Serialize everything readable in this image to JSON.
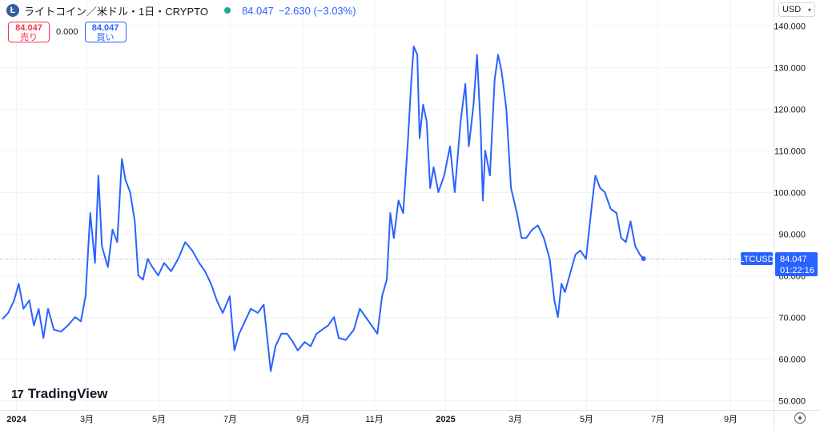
{
  "header": {
    "title": "ライトコイン／米ドル・1日・CRYPTO",
    "last": "84.047",
    "change": "−2.630 (−3.03%)"
  },
  "trade": {
    "sell_price": "84.047",
    "sell_label": "売り",
    "spread": "0.000",
    "buy_price": "84.047",
    "buy_label": "買い"
  },
  "currency": "USD",
  "logo_text": "TradingView",
  "colors": {
    "line": "#2962ff",
    "price_label": "#2962ff",
    "sell": "#f23645",
    "buy": "#2962ff"
  },
  "chart_data": {
    "type": "line",
    "symbol": "LTCUSD",
    "last_value": 84.047,
    "last_value_label": "84.047",
    "countdown": "01:22:16",
    "ylim": [
      50,
      140
    ],
    "yticks": [
      50,
      60,
      70,
      80,
      90,
      100,
      110,
      120,
      130,
      140
    ],
    "ytick_labels": [
      "50.000",
      "60.000",
      "70.000",
      "80.000",
      "90.000",
      "100.000",
      "110.000",
      "120.000",
      "130.000",
      "140.000"
    ],
    "xlim": [
      "2023-12-18",
      "2025-10-08"
    ],
    "xticks": [
      {
        "date": "2024-01-01",
        "label": "2024",
        "bold": true
      },
      {
        "date": "2024-03-01",
        "label": "3月",
        "bold": false
      },
      {
        "date": "2024-05-01",
        "label": "5月",
        "bold": false
      },
      {
        "date": "2024-07-01",
        "label": "7月",
        "bold": false
      },
      {
        "date": "2024-09-01",
        "label": "9月",
        "bold": false
      },
      {
        "date": "2024-11-01",
        "label": "11月",
        "bold": false
      },
      {
        "date": "2025-01-01",
        "label": "2025",
        "bold": true
      },
      {
        "date": "2025-03-01",
        "label": "3月",
        "bold": false
      },
      {
        "date": "2025-05-01",
        "label": "5月",
        "bold": false
      },
      {
        "date": "2025-07-01",
        "label": "7月",
        "bold": false
      },
      {
        "date": "2025-09-01",
        "label": "9月",
        "bold": false
      }
    ],
    "series": [
      {
        "points": [
          [
            "2023-12-20",
            69.5
          ],
          [
            "2023-12-25",
            71
          ],
          [
            "2023-12-30",
            74
          ],
          [
            "2024-01-03",
            78
          ],
          [
            "2024-01-07",
            72
          ],
          [
            "2024-01-12",
            74
          ],
          [
            "2024-01-16",
            68
          ],
          [
            "2024-01-20",
            72
          ],
          [
            "2024-01-24",
            65
          ],
          [
            "2024-01-28",
            72
          ],
          [
            "2024-02-02",
            67
          ],
          [
            "2024-02-08",
            66.5
          ],
          [
            "2024-02-14",
            68
          ],
          [
            "2024-02-20",
            70
          ],
          [
            "2024-02-25",
            69
          ],
          [
            "2024-02-29",
            75
          ],
          [
            "2024-03-04",
            95
          ],
          [
            "2024-03-08",
            83
          ],
          [
            "2024-03-11",
            104
          ],
          [
            "2024-03-14",
            87
          ],
          [
            "2024-03-19",
            82
          ],
          [
            "2024-03-23",
            91
          ],
          [
            "2024-03-27",
            88
          ],
          [
            "2024-03-31",
            108
          ],
          [
            "2024-04-03",
            103
          ],
          [
            "2024-04-07",
            100
          ],
          [
            "2024-04-11",
            93
          ],
          [
            "2024-04-14",
            80
          ],
          [
            "2024-04-18",
            79
          ],
          [
            "2024-04-22",
            84
          ],
          [
            "2024-04-26",
            82
          ],
          [
            "2024-05-01",
            80
          ],
          [
            "2024-05-06",
            83
          ],
          [
            "2024-05-12",
            81
          ],
          [
            "2024-05-18",
            84
          ],
          [
            "2024-05-24",
            88
          ],
          [
            "2024-05-30",
            86
          ],
          [
            "2024-06-05",
            83
          ],
          [
            "2024-06-10",
            81
          ],
          [
            "2024-06-15",
            78
          ],
          [
            "2024-06-20",
            74
          ],
          [
            "2024-06-25",
            71
          ],
          [
            "2024-07-01",
            75
          ],
          [
            "2024-07-05",
            62
          ],
          [
            "2024-07-09",
            66
          ],
          [
            "2024-07-14",
            69
          ],
          [
            "2024-07-19",
            72
          ],
          [
            "2024-07-25",
            71
          ],
          [
            "2024-07-30",
            73
          ],
          [
            "2024-08-05",
            57
          ],
          [
            "2024-08-09",
            63
          ],
          [
            "2024-08-14",
            66
          ],
          [
            "2024-08-19",
            66
          ],
          [
            "2024-08-24",
            64
          ],
          [
            "2024-08-28",
            62
          ],
          [
            "2024-09-03",
            64
          ],
          [
            "2024-09-08",
            63
          ],
          [
            "2024-09-13",
            66
          ],
          [
            "2024-09-18",
            67
          ],
          [
            "2024-09-23",
            68
          ],
          [
            "2024-09-28",
            70
          ],
          [
            "2024-10-02",
            65
          ],
          [
            "2024-10-08",
            64.5
          ],
          [
            "2024-10-15",
            67
          ],
          [
            "2024-10-20",
            72
          ],
          [
            "2024-10-25",
            70
          ],
          [
            "2024-10-30",
            68
          ],
          [
            "2024-11-04",
            66
          ],
          [
            "2024-11-08",
            75
          ],
          [
            "2024-11-12",
            79
          ],
          [
            "2024-11-15",
            95
          ],
          [
            "2024-11-18",
            89
          ],
          [
            "2024-11-22",
            98
          ],
          [
            "2024-11-26",
            95
          ],
          [
            "2024-11-30",
            112
          ],
          [
            "2024-12-03",
            127
          ],
          [
            "2024-12-05",
            135
          ],
          [
            "2024-12-08",
            133
          ],
          [
            "2024-12-10",
            113
          ],
          [
            "2024-12-13",
            121
          ],
          [
            "2024-12-16",
            117
          ],
          [
            "2024-12-19",
            101
          ],
          [
            "2024-12-22",
            106
          ],
          [
            "2024-12-26",
            100
          ],
          [
            "2024-12-31",
            104
          ],
          [
            "2025-01-05",
            111
          ],
          [
            "2025-01-09",
            100
          ],
          [
            "2025-01-14",
            117
          ],
          [
            "2025-01-18",
            126
          ],
          [
            "2025-01-21",
            111
          ],
          [
            "2025-01-25",
            121
          ],
          [
            "2025-01-28",
            133
          ],
          [
            "2025-01-31",
            116
          ],
          [
            "2025-02-02",
            98
          ],
          [
            "2025-02-04",
            110
          ],
          [
            "2025-02-08",
            104
          ],
          [
            "2025-02-12",
            127
          ],
          [
            "2025-02-15",
            133
          ],
          [
            "2025-02-18",
            129
          ],
          [
            "2025-02-22",
            120
          ],
          [
            "2025-02-26",
            101
          ],
          [
            "2025-03-03",
            95
          ],
          [
            "2025-03-07",
            89
          ],
          [
            "2025-03-11",
            89
          ],
          [
            "2025-03-16",
            91
          ],
          [
            "2025-03-21",
            92
          ],
          [
            "2025-03-26",
            89
          ],
          [
            "2025-03-31",
            84
          ],
          [
            "2025-04-04",
            74
          ],
          [
            "2025-04-07",
            70
          ],
          [
            "2025-04-10",
            78
          ],
          [
            "2025-04-13",
            76
          ],
          [
            "2025-04-17",
            80
          ],
          [
            "2025-04-22",
            85
          ],
          [
            "2025-04-26",
            86
          ],
          [
            "2025-05-01",
            84
          ],
          [
            "2025-05-06",
            97
          ],
          [
            "2025-05-09",
            104
          ],
          [
            "2025-05-13",
            101
          ],
          [
            "2025-05-17",
            100
          ],
          [
            "2025-05-22",
            96
          ],
          [
            "2025-05-27",
            95
          ],
          [
            "2025-05-31",
            89
          ],
          [
            "2025-06-04",
            88
          ],
          [
            "2025-06-08",
            93
          ],
          [
            "2025-06-12",
            87
          ],
          [
            "2025-06-16",
            85
          ],
          [
            "2025-06-19",
            84.047
          ]
        ]
      }
    ],
    "grid": true,
    "legend": "none"
  }
}
